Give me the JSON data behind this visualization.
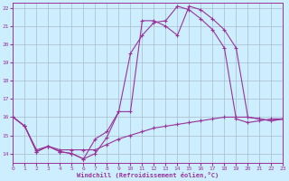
{
  "background_color": "#cceeff",
  "grid_color": "#aabbcc",
  "line_color": "#993399",
  "xlim": [
    0,
    23
  ],
  "ylim": [
    13.5,
    22.3
  ],
  "xticks": [
    0,
    1,
    2,
    3,
    4,
    5,
    6,
    7,
    8,
    9,
    10,
    11,
    12,
    13,
    14,
    15,
    16,
    17,
    18,
    19,
    20,
    21,
    22,
    23
  ],
  "yticks": [
    14,
    15,
    16,
    17,
    18,
    19,
    20,
    21,
    22
  ],
  "xlabel": "Windchill (Refroidissement éolien,°C)",
  "line1_x": [
    0,
    1,
    2,
    3,
    4,
    5,
    6,
    7,
    8,
    9,
    10,
    11,
    12,
    13,
    14,
    15,
    16,
    17,
    18,
    19,
    20,
    21,
    22,
    23
  ],
  "line1_y": [
    16.0,
    15.5,
    14.1,
    14.4,
    14.1,
    14.0,
    13.7,
    14.0,
    14.9,
    16.3,
    16.3,
    21.3,
    21.3,
    21.0,
    20.5,
    22.1,
    21.9,
    21.4,
    20.8,
    19.8,
    16.0,
    15.9,
    15.8,
    15.9
  ],
  "line2_x": [
    0,
    1,
    2,
    3,
    4,
    5,
    6,
    7,
    8,
    9,
    10,
    11,
    12,
    13,
    14,
    15,
    16,
    17,
    18,
    19,
    20,
    21,
    22,
    23
  ],
  "line2_y": [
    16.0,
    15.5,
    14.1,
    14.4,
    14.1,
    14.0,
    13.7,
    14.8,
    15.2,
    16.3,
    19.5,
    20.5,
    21.2,
    21.3,
    22.1,
    21.9,
    21.4,
    20.8,
    19.8,
    15.9,
    15.7,
    15.8,
    15.9,
    15.9
  ],
  "line3_x": [
    0,
    1,
    2,
    3,
    4,
    5,
    6,
    7,
    8,
    9,
    10,
    11,
    12,
    13,
    14,
    15,
    16,
    17,
    18,
    19,
    20,
    21,
    22,
    23
  ],
  "line3_y": [
    16.0,
    15.5,
    14.2,
    14.4,
    14.2,
    14.2,
    14.2,
    14.2,
    14.5,
    14.8,
    15.0,
    15.2,
    15.4,
    15.5,
    15.6,
    15.7,
    15.8,
    15.9,
    16.0,
    16.0,
    16.0,
    15.9,
    15.8,
    15.9
  ]
}
